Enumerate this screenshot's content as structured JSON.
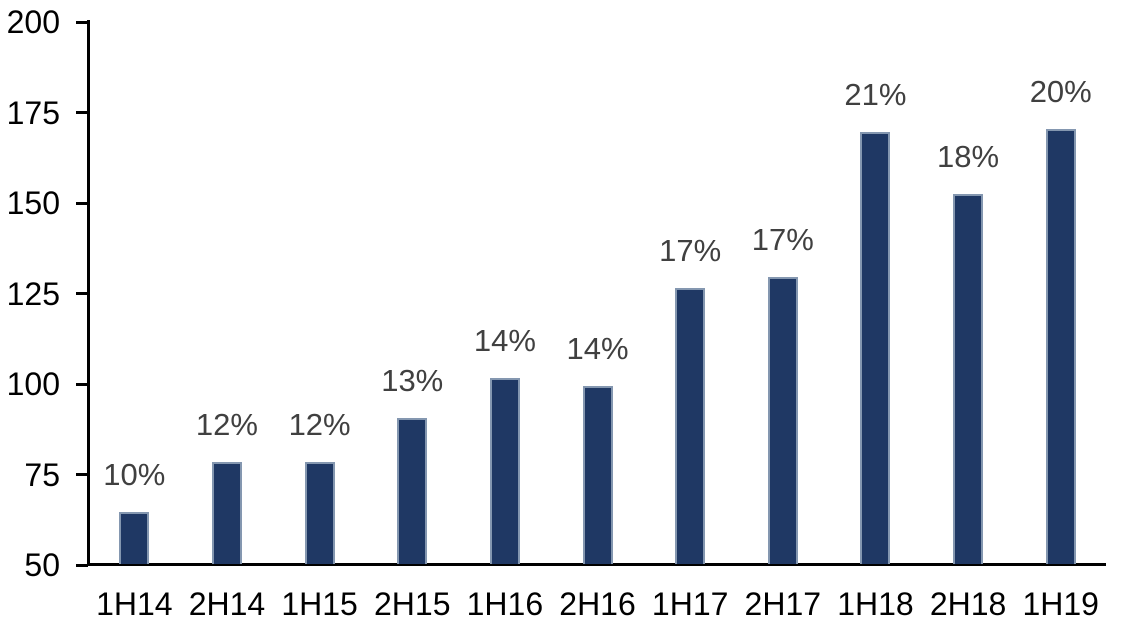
{
  "chart_data": {
    "type": "bar",
    "categories": [
      "1H14",
      "2H14",
      "1H15",
      "2H15",
      "1H16",
      "2H16",
      "1H17",
      "2H17",
      "1H18",
      "2H18",
      "1H19"
    ],
    "values": [
      64,
      78,
      78,
      90,
      101,
      99,
      126,
      129,
      169,
      152,
      170
    ],
    "bar_labels": [
      "10%",
      "12%",
      "12%",
      "13%",
      "14%",
      "14%",
      "17%",
      "17%",
      "21%",
      "18%",
      "20%"
    ],
    "title": "",
    "xlabel": "",
    "ylabel": "",
    "ylim": [
      50,
      200
    ],
    "yticks": [
      50,
      75,
      100,
      125,
      150,
      175,
      200
    ],
    "grid": false,
    "legend": false,
    "colors": {
      "bar_fill": "#1F3864",
      "bar_border": "#8497B0",
      "data_label": "#404040",
      "axis": "#000000",
      "background": "#FFFFFF"
    }
  }
}
